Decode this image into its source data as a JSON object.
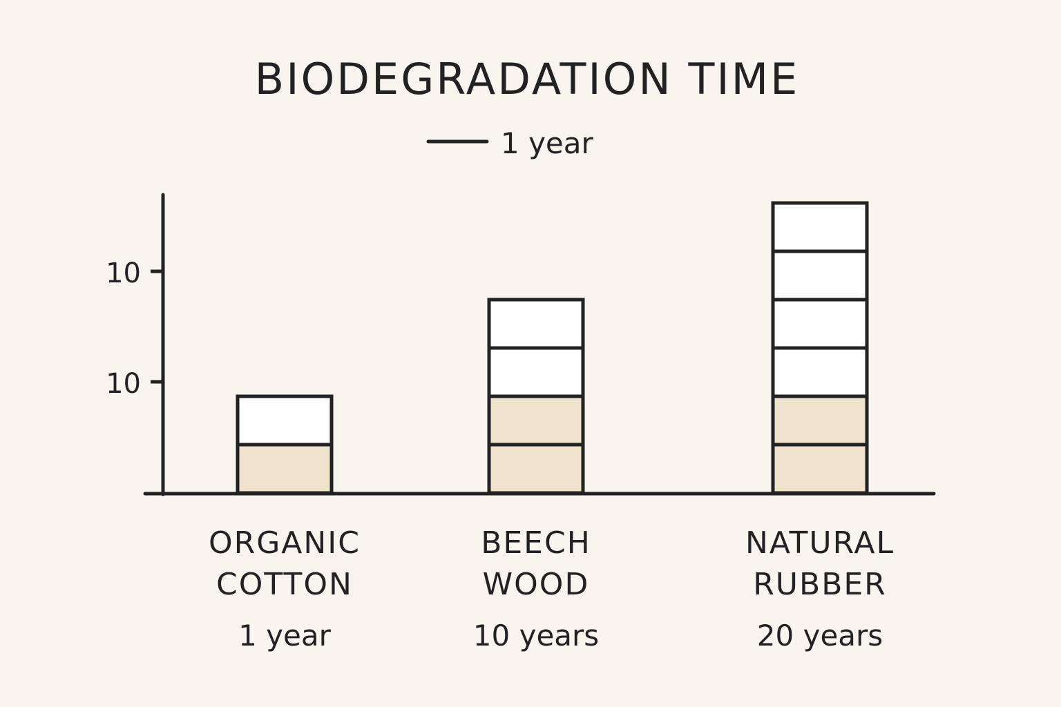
{
  "colors": {
    "background": "#f8f5ee",
    "ink": "#222222",
    "fill_shaded": "#efe3cd",
    "fill_empty": "#ffffff"
  },
  "legend": {
    "label": "1 year"
  },
  "chart_data": {
    "type": "bar",
    "title": "BIODEGRADATION TIME",
    "xlabel": "",
    "ylabel": "",
    "y_tick_labels": [
      "10",
      "10"
    ],
    "legend_position": "top-center",
    "grid": false,
    "categories": [
      {
        "lines": [
          "ORGANIC",
          "COTTON"
        ],
        "value_label": "1 year",
        "segments": 2,
        "shaded_segments": 1
      },
      {
        "lines": [
          "BEECH",
          "WOOD"
        ],
        "value_label": "10 years",
        "segments": 4,
        "shaded_segments": 2
      },
      {
        "lines": [
          "NATURAL",
          "RUBBER"
        ],
        "value_label": "20 years",
        "segments": 6,
        "shaded_segments": 2
      }
    ],
    "values": [
      1,
      10,
      20
    ]
  }
}
